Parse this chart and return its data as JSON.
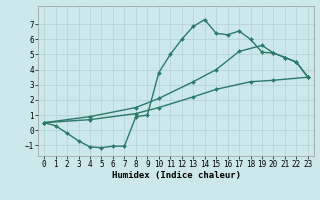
{
  "xlabel": "Humidex (Indice chaleur)",
  "xlim": [
    -0.5,
    23.5
  ],
  "ylim": [
    -1.7,
    8.2
  ],
  "xticks": [
    0,
    1,
    2,
    3,
    4,
    5,
    6,
    7,
    8,
    9,
    10,
    11,
    12,
    13,
    14,
    15,
    16,
    17,
    18,
    19,
    20,
    21,
    22,
    23
  ],
  "yticks": [
    -1,
    0,
    1,
    2,
    3,
    4,
    5,
    6,
    7
  ],
  "bg_color": "#cde8ea",
  "grid_color": "#b8d4d6",
  "line_color": "#2a7a6a",
  "line_width": 1.0,
  "marker": "D",
  "marker_size": 2.0,
  "curve1_x": [
    0,
    1,
    2,
    3,
    4,
    5,
    6,
    7,
    8,
    9,
    10,
    11,
    12,
    13,
    14,
    15,
    16,
    17,
    18,
    19,
    20,
    21,
    22,
    23
  ],
  "curve1_y": [
    0.5,
    0.3,
    -0.2,
    -0.7,
    -1.1,
    -1.15,
    -1.05,
    -1.05,
    0.9,
    1.0,
    3.8,
    5.0,
    6.0,
    6.85,
    7.3,
    6.4,
    6.3,
    6.55,
    6.0,
    5.15,
    5.1,
    4.8,
    4.5,
    3.5
  ],
  "curve2_x": [
    0,
    4,
    8,
    10,
    13,
    15,
    18,
    20,
    23
  ],
  "curve2_y": [
    0.5,
    0.7,
    1.1,
    1.5,
    2.2,
    2.7,
    3.2,
    3.3,
    3.5
  ],
  "curve3_x": [
    0,
    4,
    8,
    10,
    13,
    15,
    17,
    19,
    20,
    21,
    22,
    23
  ],
  "curve3_y": [
    0.5,
    0.9,
    1.5,
    2.1,
    3.2,
    4.0,
    5.2,
    5.6,
    5.1,
    4.8,
    4.5,
    3.5
  ]
}
